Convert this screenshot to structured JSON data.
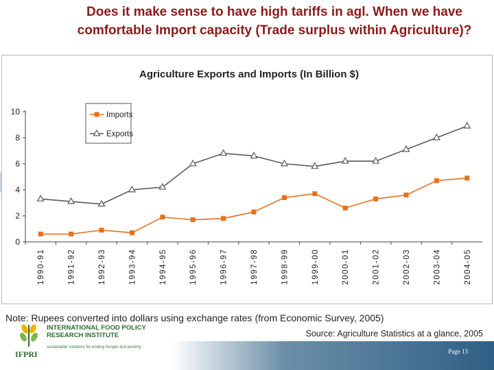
{
  "slide": {
    "title": "Does it make sense to have high tariffs in agl. When we have comfortable Import capacity (Trade surplus within Agriculture)?",
    "note": "Note: Rupees converted into dollars using exchange rates (from Economic Survey, 2005)",
    "source": "Source: Agriculture Statistics at a glance, 2005",
    "page": "Page 13"
  },
  "logo": {
    "name": "INTERNATIONAL FOOD POLICY RESEARCH INSTITUTE",
    "tagline": "sustainable solutions for ending hunger and poverty",
    "abbr": "IFPRI"
  },
  "colors": {
    "imports": "#e8701e",
    "exports": "#5a5a5a",
    "title": "#8b1a1a",
    "footer": "#2f5f85"
  },
  "chart_data": {
    "type": "line",
    "title": "Agriculture Exports and Imports (In Billion $)",
    "categories": [
      "1990-91",
      "1991-92",
      "1992-93",
      "1993-94",
      "1994-95",
      "1995-96",
      "1996-97",
      "1997-98",
      "1998-99",
      "1999-00",
      "2000-01",
      "2001-02",
      "2002-03",
      "2003-04",
      "2004-05"
    ],
    "series": [
      {
        "name": "Imports",
        "marker": "square",
        "values": [
          0.6,
          0.6,
          0.9,
          0.7,
          1.9,
          1.7,
          1.8,
          2.3,
          3.4,
          3.7,
          2.6,
          3.3,
          3.6,
          4.7,
          4.9
        ]
      },
      {
        "name": "Exports",
        "marker": "triangle",
        "values": [
          3.3,
          3.1,
          2.9,
          4.0,
          4.2,
          6.0,
          6.8,
          6.6,
          6.0,
          5.8,
          6.2,
          6.2,
          7.1,
          8.0,
          8.9
        ]
      }
    ],
    "yticks": [
      0,
      2,
      4,
      6,
      8,
      10
    ],
    "ylim": [
      0,
      10
    ],
    "legend": "top-left",
    "grid": false
  }
}
